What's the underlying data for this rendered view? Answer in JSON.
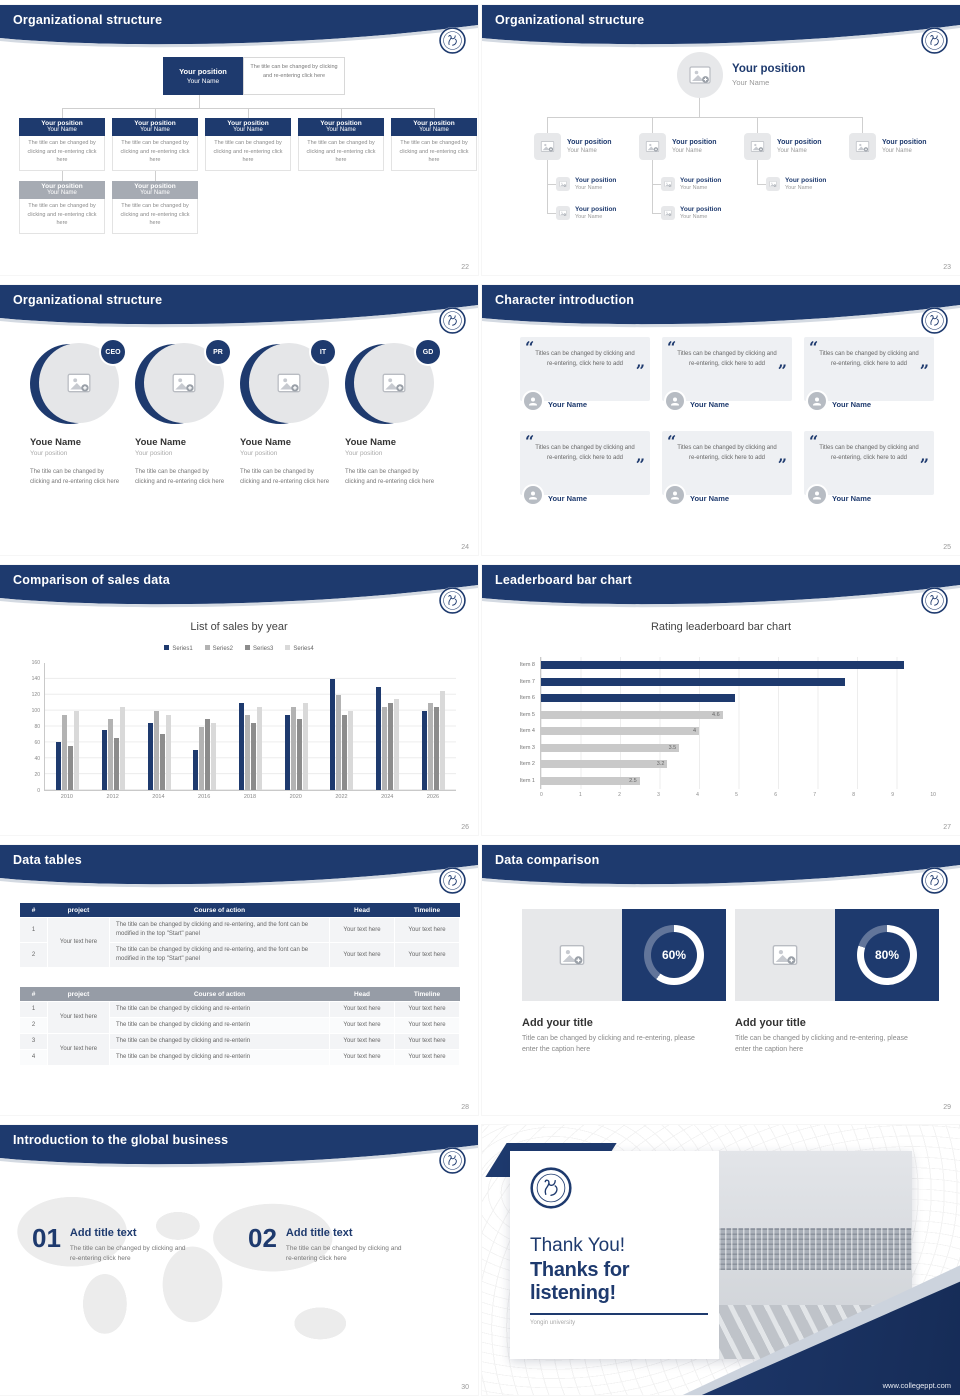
{
  "brand": {
    "navy": "#1e3a6e",
    "site": "www.collegeppt.com"
  },
  "icons": {
    "university_logo": "university-seal-icon",
    "image_placeholder": "image-placeholder-icon",
    "person": "person-icon",
    "quote_open": "“",
    "quote_close": "”"
  },
  "slides": {
    "s22": {
      "header": "Organizational structure",
      "page": "22",
      "root_position": "Your position",
      "root_name": "Your Name",
      "root_caption": "The title can be changed by clicking and re-entering click here",
      "node_position": "Your position",
      "node_name": "Your Name",
      "node_caption": "The title can be changed by clicking and re-entering click here"
    },
    "s23": {
      "header": "Organizational structure",
      "page": "23",
      "position": "Your position",
      "name": "Your Name"
    },
    "s24": {
      "header": "Organizational structure",
      "page": "24",
      "roles": [
        "CEO",
        "PR",
        "IT",
        "GD"
      ],
      "name": "Youe Name",
      "position": "Your position",
      "caption": "The title can be changed by clicking and re-entering click here"
    },
    "s25": {
      "header": "Character introduction",
      "page": "25",
      "quote": "Titles can be changed by clicking and re-entering, click here to add",
      "name": "Your Name"
    },
    "s26": {
      "header": "Comparison of sales data",
      "page": "26"
    },
    "s27": {
      "header": "Leaderboard bar chart",
      "page": "27"
    },
    "s28": {
      "header": "Data tables",
      "page": "28",
      "table1": {
        "headers": [
          "#",
          "project",
          "Course of action",
          "Head",
          "Timeline"
        ],
        "rows": [
          [
            "1",
            "Your text here",
            "The title can be changed by clicking and re-entering, and the font can be modified in the top \"Start\" panel",
            "Your text here",
            "Your text here"
          ],
          [
            "2",
            "",
            "The title can be changed by clicking and re-entering, and the font can be modified in the top \"Start\" panel",
            "Your text here",
            "Your text here"
          ]
        ]
      },
      "table2": {
        "headers": [
          "#",
          "project",
          "Course of action",
          "Head",
          "Timeline"
        ],
        "rows": [
          [
            "1",
            "Your text here",
            "The title can be changed by clicking and re-enterin",
            "Your text here",
            "Your text here"
          ],
          [
            "2",
            "",
            "The title can be changed by clicking and re-enterin",
            "Your text here",
            "Your text here"
          ],
          [
            "3",
            "Your text here",
            "The title can be changed by clicking and re-enterin",
            "Your text here",
            "Your text here"
          ],
          [
            "4",
            "",
            "The title can be changed by clicking and re-enterin",
            "Your text here",
            "Your text here"
          ]
        ]
      }
    },
    "s29": {
      "header": "Data comparison",
      "page": "29",
      "panels": [
        {
          "percent": 60,
          "percent_label": "60%",
          "title": "Add your title",
          "caption": "Title can be changed by clicking and re-entering, please enter the caption here"
        },
        {
          "percent": 80,
          "percent_label": "80%",
          "title": "Add your title",
          "caption": "Title can be changed by clicking and re-entering, please enter the caption here"
        }
      ]
    },
    "s30": {
      "header": "Introduction to the global business",
      "page": "30",
      "items": [
        {
          "num": "01",
          "title": "Add title text",
          "caption": "The title can be changed by clicking and re-entering click here"
        },
        {
          "num": "02",
          "title": "Add title text",
          "caption": "The title can be changed by clicking and re-entering click here"
        }
      ]
    },
    "s31": {
      "thank_you": "Thank You!",
      "subtitle": "Thanks for listening!",
      "university": "Yongin university"
    }
  },
  "chart_data": [
    {
      "type": "bar",
      "title": "List of sales by year",
      "categories": [
        "2010",
        "2012",
        "2014",
        "2016",
        "2018",
        "2020",
        "2022",
        "2024",
        "2026"
      ],
      "series": [
        {
          "name": "Series1",
          "color": "#1e3a6e",
          "values": [
            60,
            75,
            85,
            50,
            110,
            95,
            140,
            130,
            100
          ]
        },
        {
          "name": "Series2",
          "color": "#b3b3b3",
          "values": [
            95,
            90,
            100,
            80,
            95,
            105,
            120,
            105,
            110
          ]
        },
        {
          "name": "Series3",
          "color": "#8c8c8c",
          "values": [
            55,
            65,
            70,
            90,
            85,
            90,
            95,
            110,
            105
          ]
        },
        {
          "name": "Series4",
          "color": "#d9d9d9",
          "values": [
            100,
            105,
            95,
            85,
            105,
            110,
            100,
            115,
            125
          ]
        }
      ],
      "xlabel": "",
      "ylabel": "",
      "ylim": [
        0,
        160
      ],
      "yticks": [
        0,
        20,
        40,
        60,
        80,
        100,
        120,
        140,
        160
      ],
      "legend_position": "top",
      "grid": true
    },
    {
      "type": "bar-horizontal",
      "title": "Rating leaderboard bar chart",
      "categories": [
        "Item 8",
        "Item 7",
        "Item 6",
        "Item 5",
        "Item 4",
        "Item 3",
        "Item 2",
        "Item 1"
      ],
      "values": [
        9.2,
        7.7,
        4.9,
        4.6,
        4,
        3.5,
        3.2,
        2.5
      ],
      "colors": [
        "#1e3a6e",
        "#1e3a6e",
        "#1e3a6e",
        "#c9c9c9",
        "#c9c9c9",
        "#c9c9c9",
        "#c9c9c9",
        "#c9c9c9"
      ],
      "bar_labels": [
        "",
        "",
        "",
        "4.6",
        "4",
        "3.5",
        "3.2",
        "2.5"
      ],
      "xlim": [
        0,
        10
      ],
      "xticks": [
        0,
        1,
        2,
        3,
        4,
        5,
        6,
        7,
        8,
        9,
        10
      ],
      "grid": true
    }
  ]
}
